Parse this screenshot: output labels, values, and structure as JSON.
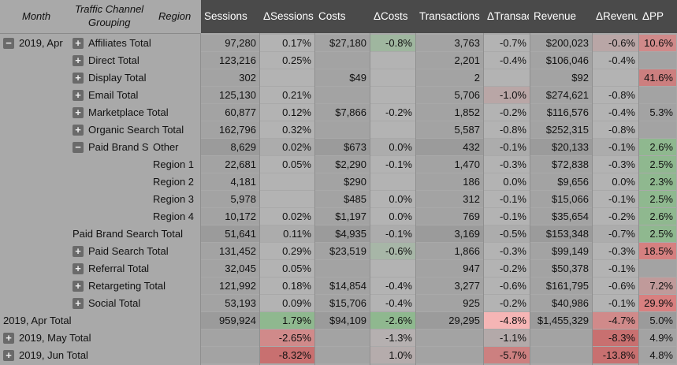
{
  "header": {
    "month": "Month",
    "channel_line1": "Traffic Channel",
    "channel_line2": "Grouping",
    "region": "Region",
    "cols": [
      "Sessions",
      "ΔSessions",
      "Costs",
      "ΔCosts",
      "Transactions",
      "ΔTransac",
      "Revenue",
      "ΔRevenu",
      "ΔPP"
    ]
  },
  "colors": {
    "header_dark": "#4a4a4a",
    "body": "#a9a9a9",
    "green": "#7fb07f",
    "red": "#d98080",
    "light_red": "#f2b0b0"
  },
  "rows": [
    {
      "month": "2019, Apr",
      "channel": "Affiliates Total",
      "region": "",
      "exp": "+",
      "vals": [
        "97,280",
        "0.17%",
        "$27,180",
        "-0.8%",
        "3,763",
        "-0.7%",
        "$200,023",
        "-0.6%",
        "10.6%"
      ]
    },
    {
      "month": "",
      "channel": "Direct Total",
      "region": "",
      "exp": "+",
      "vals": [
        "123,216",
        "0.25%",
        "",
        "",
        "2,201",
        "-0.4%",
        "$106,046",
        "-0.4%",
        ""
      ]
    },
    {
      "month": "",
      "channel": "Display Total",
      "region": "",
      "exp": "+",
      "vals": [
        "302",
        "",
        "$49",
        "",
        "2",
        "",
        "$92",
        "",
        "41.6%"
      ]
    },
    {
      "month": "",
      "channel": "Email Total",
      "region": "",
      "exp": "+",
      "vals": [
        "125,130",
        "0.21%",
        "",
        "",
        "5,706",
        "-1.0%",
        "$274,621",
        "-0.8%",
        ""
      ]
    },
    {
      "month": "",
      "channel": "Marketplace Total",
      "region": "",
      "exp": "+",
      "vals": [
        "60,877",
        "0.12%",
        "$7,866",
        "-0.2%",
        "1,852",
        "-0.2%",
        "$116,576",
        "-0.4%",
        "5.3%"
      ]
    },
    {
      "month": "",
      "channel": "Organic Search Total",
      "region": "",
      "exp": "+",
      "vals": [
        "162,796",
        "0.32%",
        "",
        "",
        "5,587",
        "-0.8%",
        "$252,315",
        "-0.8%",
        ""
      ]
    },
    {
      "month": "",
      "channel": "Paid Brand S",
      "region": "Other",
      "exp": "−",
      "vals": [
        "8,629",
        "0.02%",
        "$673",
        "0.0%",
        "432",
        "-0.1%",
        "$20,133",
        "-0.1%",
        "2.6%"
      ]
    },
    {
      "month": "",
      "channel": "",
      "region": "Region 1",
      "exp": "",
      "vals": [
        "22,681",
        "0.05%",
        "$2,290",
        "-0.1%",
        "1,470",
        "-0.3%",
        "$72,838",
        "-0.3%",
        "2.5%"
      ]
    },
    {
      "month": "",
      "channel": "",
      "region": "Region 2",
      "exp": "",
      "vals": [
        "4,181",
        "",
        "$290",
        "",
        "186",
        "0.0%",
        "$9,656",
        "0.0%",
        "2.3%"
      ]
    },
    {
      "month": "",
      "channel": "",
      "region": "Region 3",
      "exp": "",
      "vals": [
        "5,978",
        "",
        "$485",
        "0.0%",
        "312",
        "-0.1%",
        "$15,066",
        "-0.1%",
        "2.5%"
      ]
    },
    {
      "month": "",
      "channel": "",
      "region": "Region 4",
      "exp": "",
      "vals": [
        "10,172",
        "0.02%",
        "$1,197",
        "0.0%",
        "769",
        "-0.1%",
        "$35,654",
        "-0.2%",
        "2.6%"
      ]
    },
    {
      "month": "",
      "channel": "Paid Brand Search Total",
      "region": "",
      "exp": "",
      "vals": [
        "51,641",
        "0.11%",
        "$4,935",
        "-0.1%",
        "3,169",
        "-0.5%",
        "$153,348",
        "-0.7%",
        "2.5%"
      ]
    },
    {
      "month": "",
      "channel": "Paid Search Total",
      "region": "",
      "exp": "+",
      "vals": [
        "131,452",
        "0.29%",
        "$23,519",
        "-0.6%",
        "1,866",
        "-0.3%",
        "$99,149",
        "-0.3%",
        "18.5%"
      ]
    },
    {
      "month": "",
      "channel": "Referral Total",
      "region": "",
      "exp": "+",
      "vals": [
        "32,045",
        "0.05%",
        "",
        "",
        "947",
        "-0.2%",
        "$50,378",
        "-0.1%",
        ""
      ]
    },
    {
      "month": "",
      "channel": "Retargeting Total",
      "region": "",
      "exp": "+",
      "vals": [
        "121,992",
        "0.18%",
        "$14,854",
        "-0.4%",
        "3,277",
        "-0.6%",
        "$161,795",
        "-0.6%",
        "7.2%"
      ]
    },
    {
      "month": "",
      "channel": "Social Total",
      "region": "",
      "exp": "+",
      "vals": [
        "53,193",
        "0.09%",
        "$15,706",
        "-0.4%",
        "925",
        "-0.2%",
        "$40,986",
        "-0.1%",
        "29.9%"
      ]
    },
    {
      "month": "2019, Apr  Total",
      "channel": "",
      "region": "",
      "exp": "",
      "vals": [
        "959,924",
        "1.79%",
        "$94,109",
        "-2.6%",
        "29,295",
        "-4.8%",
        "$1,455,329",
        "-4.7%",
        "5.0%"
      ]
    },
    {
      "month": "2019, May  Total",
      "channel": "",
      "region": "",
      "exp": "+",
      "vals": [
        "",
        "-2.65%",
        "",
        "-1.3%",
        "",
        "-1.1%",
        "",
        "-8.3%",
        "4.9%"
      ]
    },
    {
      "month": "2019, Jun  Total",
      "channel": "",
      "region": "",
      "exp": "+",
      "vals": [
        "",
        "-8.32%",
        "",
        "1.0%",
        "",
        "-5.7%",
        "",
        "-13.8%",
        "4.8%"
      ]
    }
  ]
}
